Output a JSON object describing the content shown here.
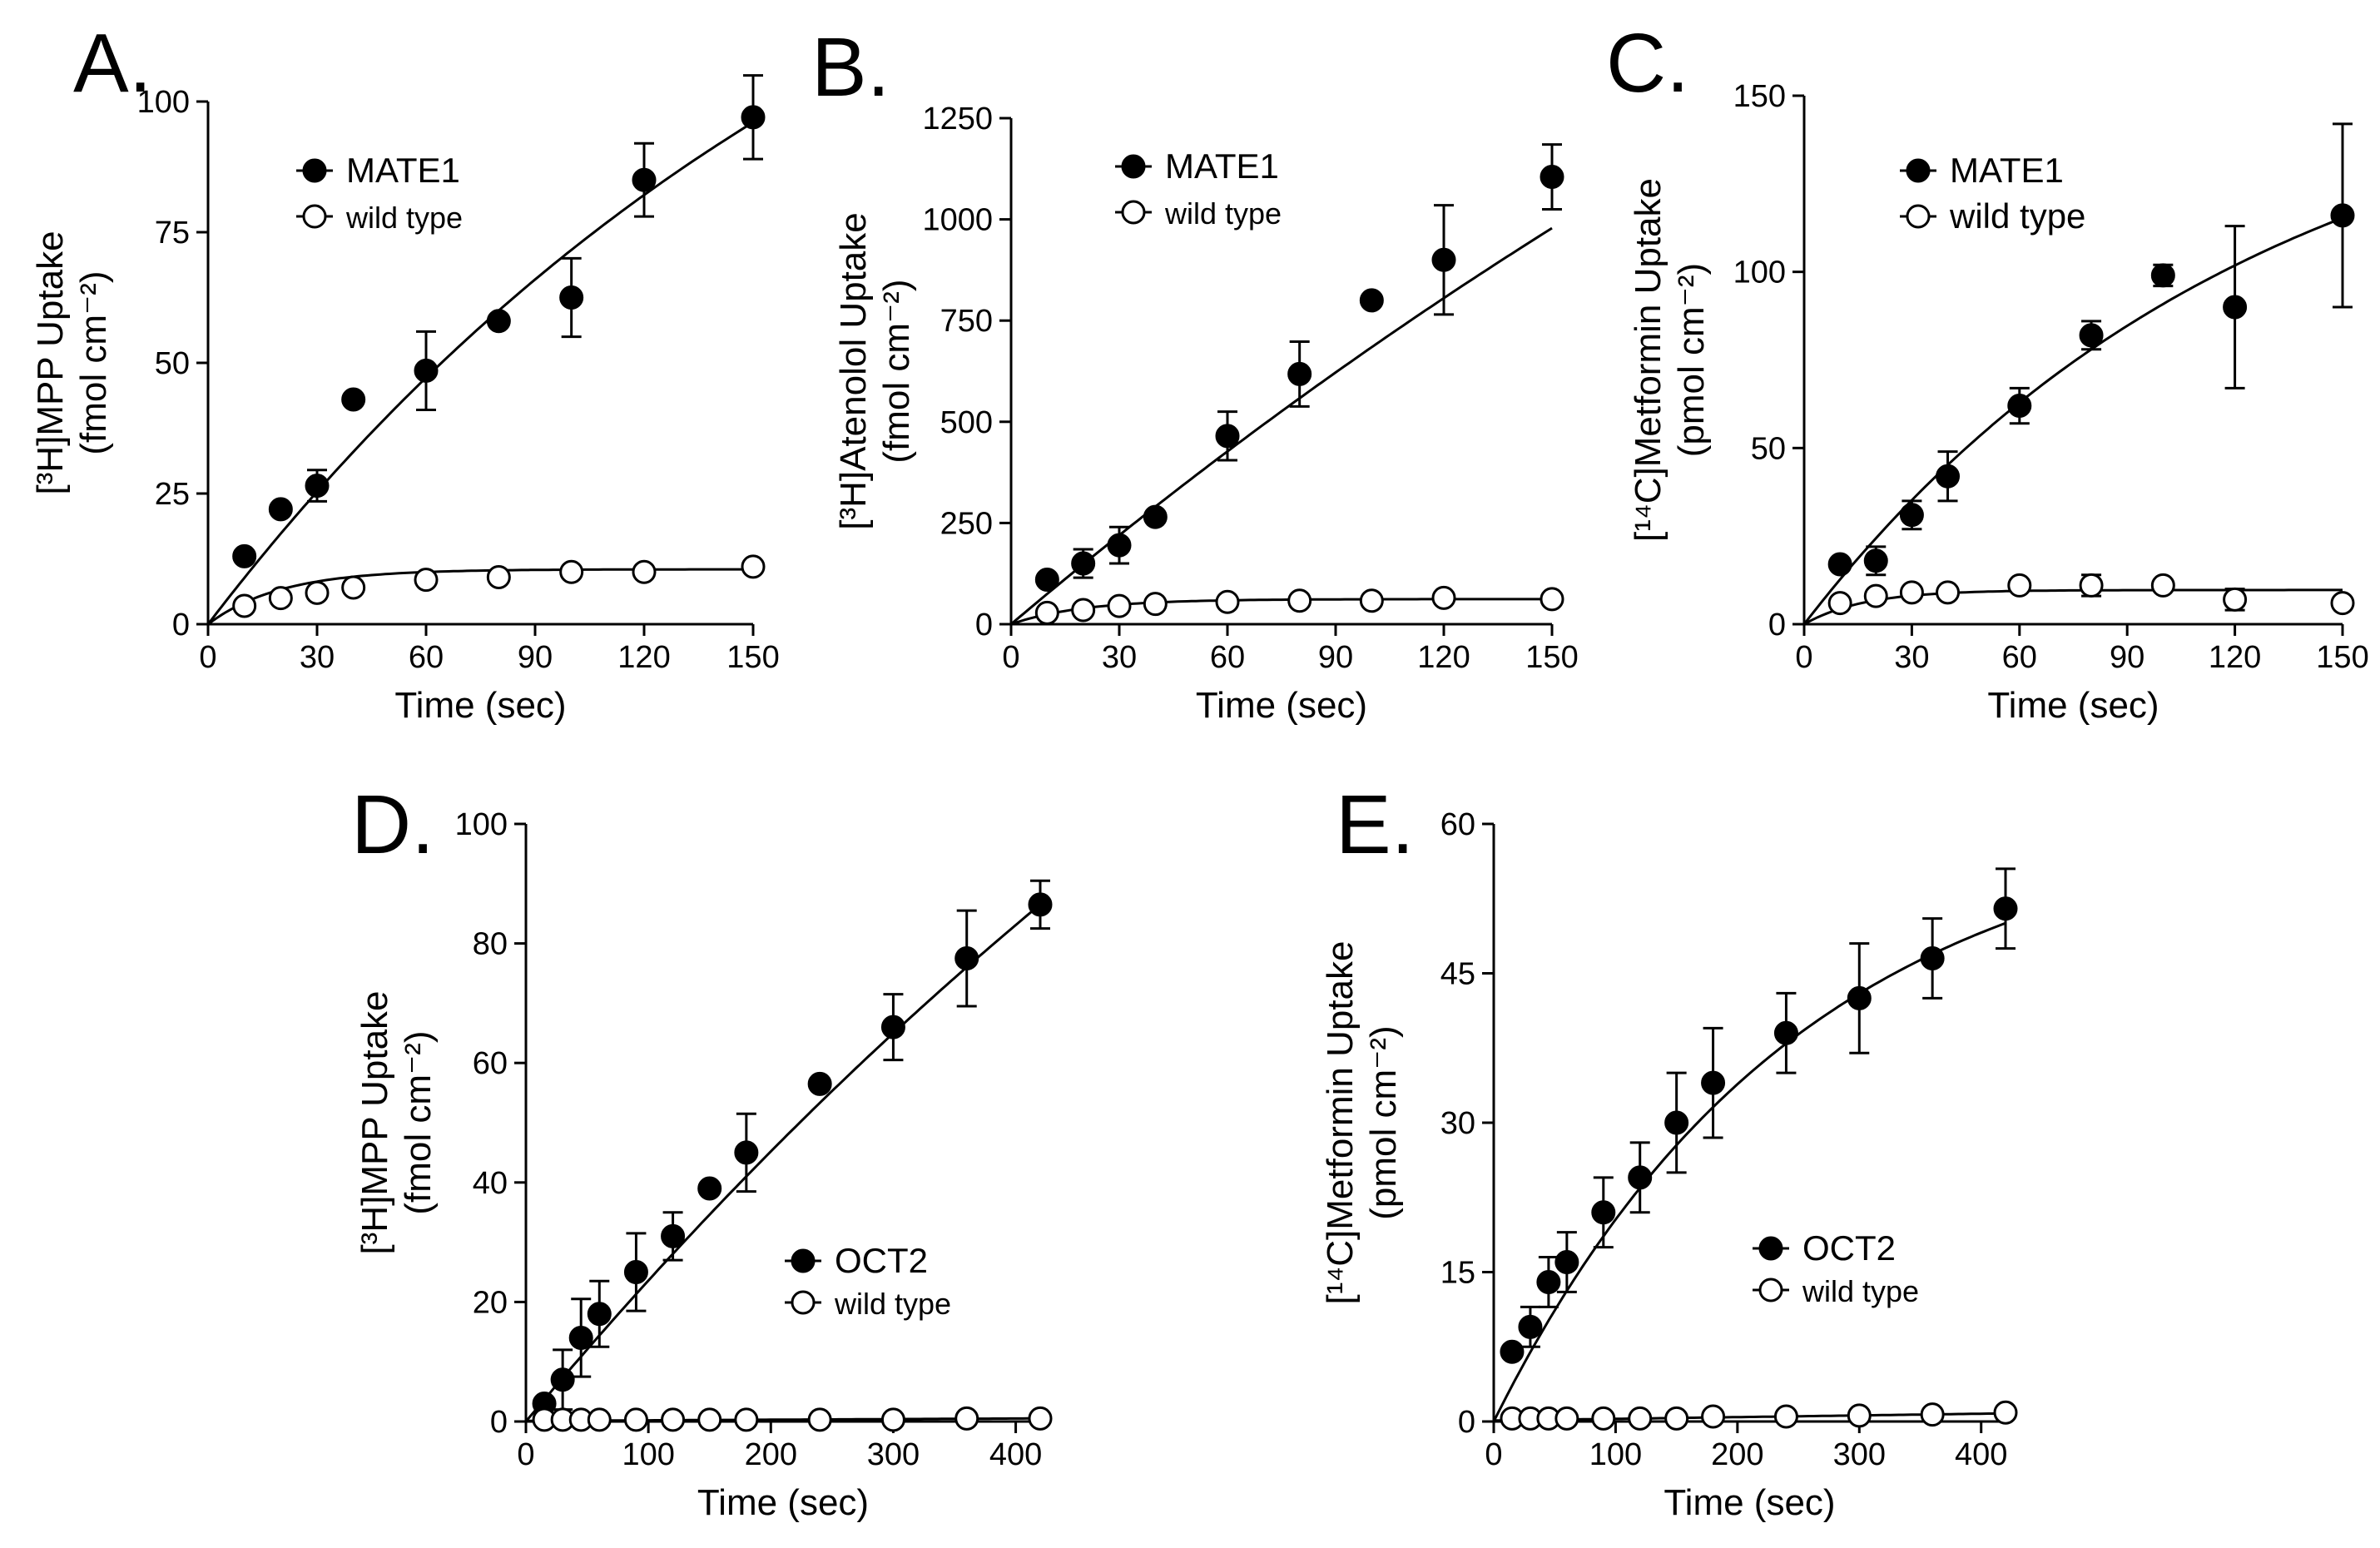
{
  "chart_data": [
    {
      "panel": "A.",
      "type": "scatter",
      "ylabel_main": "[³H]MPP Uptake",
      "ylabel_unit": "(fmol cm⁻²)",
      "xlabel": "Time (sec)",
      "xlim": [
        0,
        150
      ],
      "ylim": [
        0,
        100
      ],
      "xticks": [
        0,
        30,
        60,
        90,
        120,
        150
      ],
      "yticks": [
        0,
        25,
        50,
        75,
        100
      ],
      "series": [
        {
          "name": "MATE1",
          "filled": true,
          "points": [
            {
              "x": 10,
              "y": 13,
              "err": 0
            },
            {
              "x": 20,
              "y": 22,
              "err": 0
            },
            {
              "x": 30,
              "y": 26.5,
              "err": 3
            },
            {
              "x": 40,
              "y": 43,
              "err": 0
            },
            {
              "x": 60,
              "y": 48.5,
              "err": 7.5
            },
            {
              "x": 80,
              "y": 58,
              "err": 0
            },
            {
              "x": 100,
              "y": 62.5,
              "err": 7.5
            },
            {
              "x": 120,
              "y": 85,
              "err": 7
            },
            {
              "x": 150,
              "y": 97,
              "err": 8
            }
          ],
          "fit": {
            "kind": "exp",
            "a": 182,
            "k": 0.005
          }
        },
        {
          "name": "wild type",
          "filled": false,
          "points": [
            {
              "x": 10,
              "y": 3.5,
              "err": 0
            },
            {
              "x": 20,
              "y": 5,
              "err": 0
            },
            {
              "x": 30,
              "y": 6,
              "err": 0
            },
            {
              "x": 40,
              "y": 7,
              "err": 0
            },
            {
              "x": 60,
              "y": 8.5,
              "err": 0
            },
            {
              "x": 80,
              "y": 9,
              "err": 0
            },
            {
              "x": 100,
              "y": 10,
              "err": 0
            },
            {
              "x": 120,
              "y": 10,
              "err": 0
            },
            {
              "x": 150,
              "y": 11,
              "err": 0
            }
          ],
          "fit": {
            "kind": "exp",
            "a": 10.5,
            "k": 0.05
          }
        }
      ]
    },
    {
      "panel": "B.",
      "type": "scatter",
      "ylabel_main": "[³H]Atenolol Uptake",
      "ylabel_unit": "(fmol cm⁻²)",
      "xlabel": "Time (sec)",
      "xlim": [
        0,
        150
      ],
      "ylim": [
        0,
        1250
      ],
      "xticks": [
        0,
        30,
        60,
        90,
        120,
        150
      ],
      "yticks": [
        0,
        250,
        500,
        750,
        1000,
        1250
      ],
      "series": [
        {
          "name": "MATE1",
          "filled": true,
          "points": [
            {
              "x": 10,
              "y": 110,
              "err": 0
            },
            {
              "x": 20,
              "y": 150,
              "err": 35
            },
            {
              "x": 30,
              "y": 195,
              "err": 45
            },
            {
              "x": 40,
              "y": 265,
              "err": 0
            },
            {
              "x": 60,
              "y": 465,
              "err": 60
            },
            {
              "x": 80,
              "y": 618,
              "err": 80
            },
            {
              "x": 100,
              "y": 800,
              "err": 0
            },
            {
              "x": 120,
              "y": 900,
              "err": 135
            },
            {
              "x": 150,
              "y": 1105,
              "err": 80
            }
          ],
          "fit": {
            "kind": "exp",
            "a": 3775,
            "k": 0.002
          }
        },
        {
          "name": "wild type",
          "filled": false,
          "points": [
            {
              "x": 10,
              "y": 28,
              "err": 0
            },
            {
              "x": 20,
              "y": 35,
              "err": 0
            },
            {
              "x": 30,
              "y": 45,
              "err": 0
            },
            {
              "x": 40,
              "y": 50,
              "err": 0
            },
            {
              "x": 60,
              "y": 55,
              "err": 0
            },
            {
              "x": 80,
              "y": 58,
              "err": 0
            },
            {
              "x": 100,
              "y": 58,
              "err": 0
            },
            {
              "x": 120,
              "y": 65,
              "err": 0
            },
            {
              "x": 150,
              "y": 62,
              "err": 0
            }
          ],
          "fit": {
            "kind": "exp",
            "a": 62,
            "k": 0.05
          }
        }
      ]
    },
    {
      "panel": "C.",
      "type": "scatter",
      "ylabel_main": "[¹⁴C]Metformin Uptake",
      "ylabel_unit": "(pmol cm⁻²)",
      "xlabel": "Time (sec)",
      "xlim": [
        0,
        150
      ],
      "ylim": [
        0,
        150
      ],
      "xticks": [
        0,
        30,
        60,
        90,
        120,
        150
      ],
      "yticks": [
        0,
        50,
        100,
        150
      ],
      "series": [
        {
          "name": "MATE1",
          "filled": true,
          "points": [
            {
              "x": 10,
              "y": 17,
              "err": 0
            },
            {
              "x": 20,
              "y": 18,
              "err": 4
            },
            {
              "x": 30,
              "y": 31,
              "err": 4
            },
            {
              "x": 40,
              "y": 42,
              "err": 7
            },
            {
              "x": 60,
              "y": 62,
              "err": 5
            },
            {
              "x": 80,
              "y": 82,
              "err": 4
            },
            {
              "x": 100,
              "y": 99,
              "err": 3
            },
            {
              "x": 120,
              "y": 90,
              "err": 23
            },
            {
              "x": 150,
              "y": 116,
              "err": 26
            }
          ],
          "fit": {
            "kind": "exp",
            "a": 165,
            "k": 0.008
          }
        },
        {
          "name": "wild type",
          "filled": false,
          "points": [
            {
              "x": 10,
              "y": 6,
              "err": 0
            },
            {
              "x": 20,
              "y": 8,
              "err": 0
            },
            {
              "x": 30,
              "y": 9,
              "err": 0
            },
            {
              "x": 40,
              "y": 9,
              "err": 0
            },
            {
              "x": 60,
              "y": 11,
              "err": 0
            },
            {
              "x": 80,
              "y": 11,
              "err": 3
            },
            {
              "x": 100,
              "y": 11,
              "err": 0
            },
            {
              "x": 120,
              "y": 7,
              "err": 3
            },
            {
              "x": 150,
              "y": 6,
              "err": 0
            }
          ],
          "fit": {
            "kind": "exp",
            "a": 9.7,
            "k": 0.06
          }
        }
      ]
    },
    {
      "panel": "D.",
      "type": "scatter",
      "ylabel_main": "[³H]MPP Uptake",
      "ylabel_unit": "(fmol cm⁻²)",
      "xlabel": "Time (sec)",
      "xlim": [
        0,
        420
      ],
      "ylim": [
        0,
        100
      ],
      "xticks": [
        0,
        100,
        200,
        300,
        400
      ],
      "yticks": [
        0,
        20,
        40,
        60,
        80,
        100
      ],
      "series": [
        {
          "name": "OCT2",
          "filled": true,
          "points": [
            {
              "x": 15,
              "y": 3,
              "err": 0
            },
            {
              "x": 30,
              "y": 7,
              "err": 5
            },
            {
              "x": 45,
              "y": 14,
              "err": 6.5
            },
            {
              "x": 60,
              "y": 18,
              "err": 5.5
            },
            {
              "x": 90,
              "y": 25,
              "err": 6.5
            },
            {
              "x": 120,
              "y": 31,
              "err": 4
            },
            {
              "x": 150,
              "y": 39,
              "err": 0
            },
            {
              "x": 180,
              "y": 45,
              "err": 6.5
            },
            {
              "x": 240,
              "y": 56.5,
              "err": 0
            },
            {
              "x": 300,
              "y": 66,
              "err": 5.5
            },
            {
              "x": 360,
              "y": 77.5,
              "err": 8
            },
            {
              "x": 420,
              "y": 86.5,
              "err": 4
            }
          ],
          "fit": {
            "kind": "exp",
            "a": 280,
            "k": 0.00088
          }
        },
        {
          "name": "wild type",
          "filled": false,
          "points": [
            {
              "x": 15,
              "y": 0.3,
              "err": 0
            },
            {
              "x": 30,
              "y": 0.3,
              "err": 0
            },
            {
              "x": 45,
              "y": 0.3,
              "err": 0
            },
            {
              "x": 60,
              "y": 0.3,
              "err": 0
            },
            {
              "x": 90,
              "y": 0.3,
              "err": 0
            },
            {
              "x": 120,
              "y": 0.3,
              "err": 0
            },
            {
              "x": 150,
              "y": 0.3,
              "err": 0
            },
            {
              "x": 180,
              "y": 0.3,
              "err": 0
            },
            {
              "x": 240,
              "y": 0.3,
              "err": 0
            },
            {
              "x": 300,
              "y": 0.3,
              "err": 0
            },
            {
              "x": 360,
              "y": 0.5,
              "err": 0
            },
            {
              "x": 420,
              "y": 0.5,
              "err": 0
            }
          ],
          "fit": {
            "kind": "linear",
            "m": 0.001,
            "b": 0.1
          }
        }
      ]
    },
    {
      "panel": "E.",
      "type": "scatter",
      "ylabel_main": "[¹⁴C]Metformin Uptake",
      "ylabel_unit": "(pmol cm⁻²)",
      "xlabel": "Time (sec)",
      "xlim": [
        0,
        420
      ],
      "ylim": [
        0,
        60
      ],
      "xticks": [
        0,
        100,
        200,
        300,
        400
      ],
      "yticks": [
        0,
        15,
        30,
        45,
        60
      ],
      "series": [
        {
          "name": "OCT2",
          "filled": true,
          "points": [
            {
              "x": 15,
              "y": 7,
              "err": 0
            },
            {
              "x": 30,
              "y": 9.5,
              "err": 2
            },
            {
              "x": 45,
              "y": 14,
              "err": 2.5
            },
            {
              "x": 60,
              "y": 16,
              "err": 3
            },
            {
              "x": 90,
              "y": 21,
              "err": 3.5
            },
            {
              "x": 120,
              "y": 24.5,
              "err": 3.5
            },
            {
              "x": 150,
              "y": 30,
              "err": 5
            },
            {
              "x": 180,
              "y": 34,
              "err": 5.5
            },
            {
              "x": 240,
              "y": 39,
              "err": 4
            },
            {
              "x": 300,
              "y": 42.5,
              "err": 5.5
            },
            {
              "x": 360,
              "y": 46.5,
              "err": 4
            },
            {
              "x": 420,
              "y": 51.5,
              "err": 4
            }
          ],
          "fit": {
            "kind": "exp",
            "a": 61.5,
            "k": 0.004
          }
        },
        {
          "name": "wild type",
          "filled": false,
          "points": [
            {
              "x": 15,
              "y": 0.3,
              "err": 0
            },
            {
              "x": 30,
              "y": 0.3,
              "err": 0
            },
            {
              "x": 45,
              "y": 0.3,
              "err": 0
            },
            {
              "x": 60,
              "y": 0.3,
              "err": 0
            },
            {
              "x": 90,
              "y": 0.3,
              "err": 0
            },
            {
              "x": 120,
              "y": 0.3,
              "err": 0
            },
            {
              "x": 150,
              "y": 0.3,
              "err": 0
            },
            {
              "x": 180,
              "y": 0.5,
              "err": 0
            },
            {
              "x": 240,
              "y": 0.5,
              "err": 0
            },
            {
              "x": 300,
              "y": 0.6,
              "err": 0
            },
            {
              "x": 360,
              "y": 0.7,
              "err": 0
            },
            {
              "x": 420,
              "y": 0.9,
              "err": 0
            }
          ],
          "fit": {
            "kind": "linear",
            "m": 0.0017,
            "b": 0.1
          }
        }
      ]
    }
  ]
}
